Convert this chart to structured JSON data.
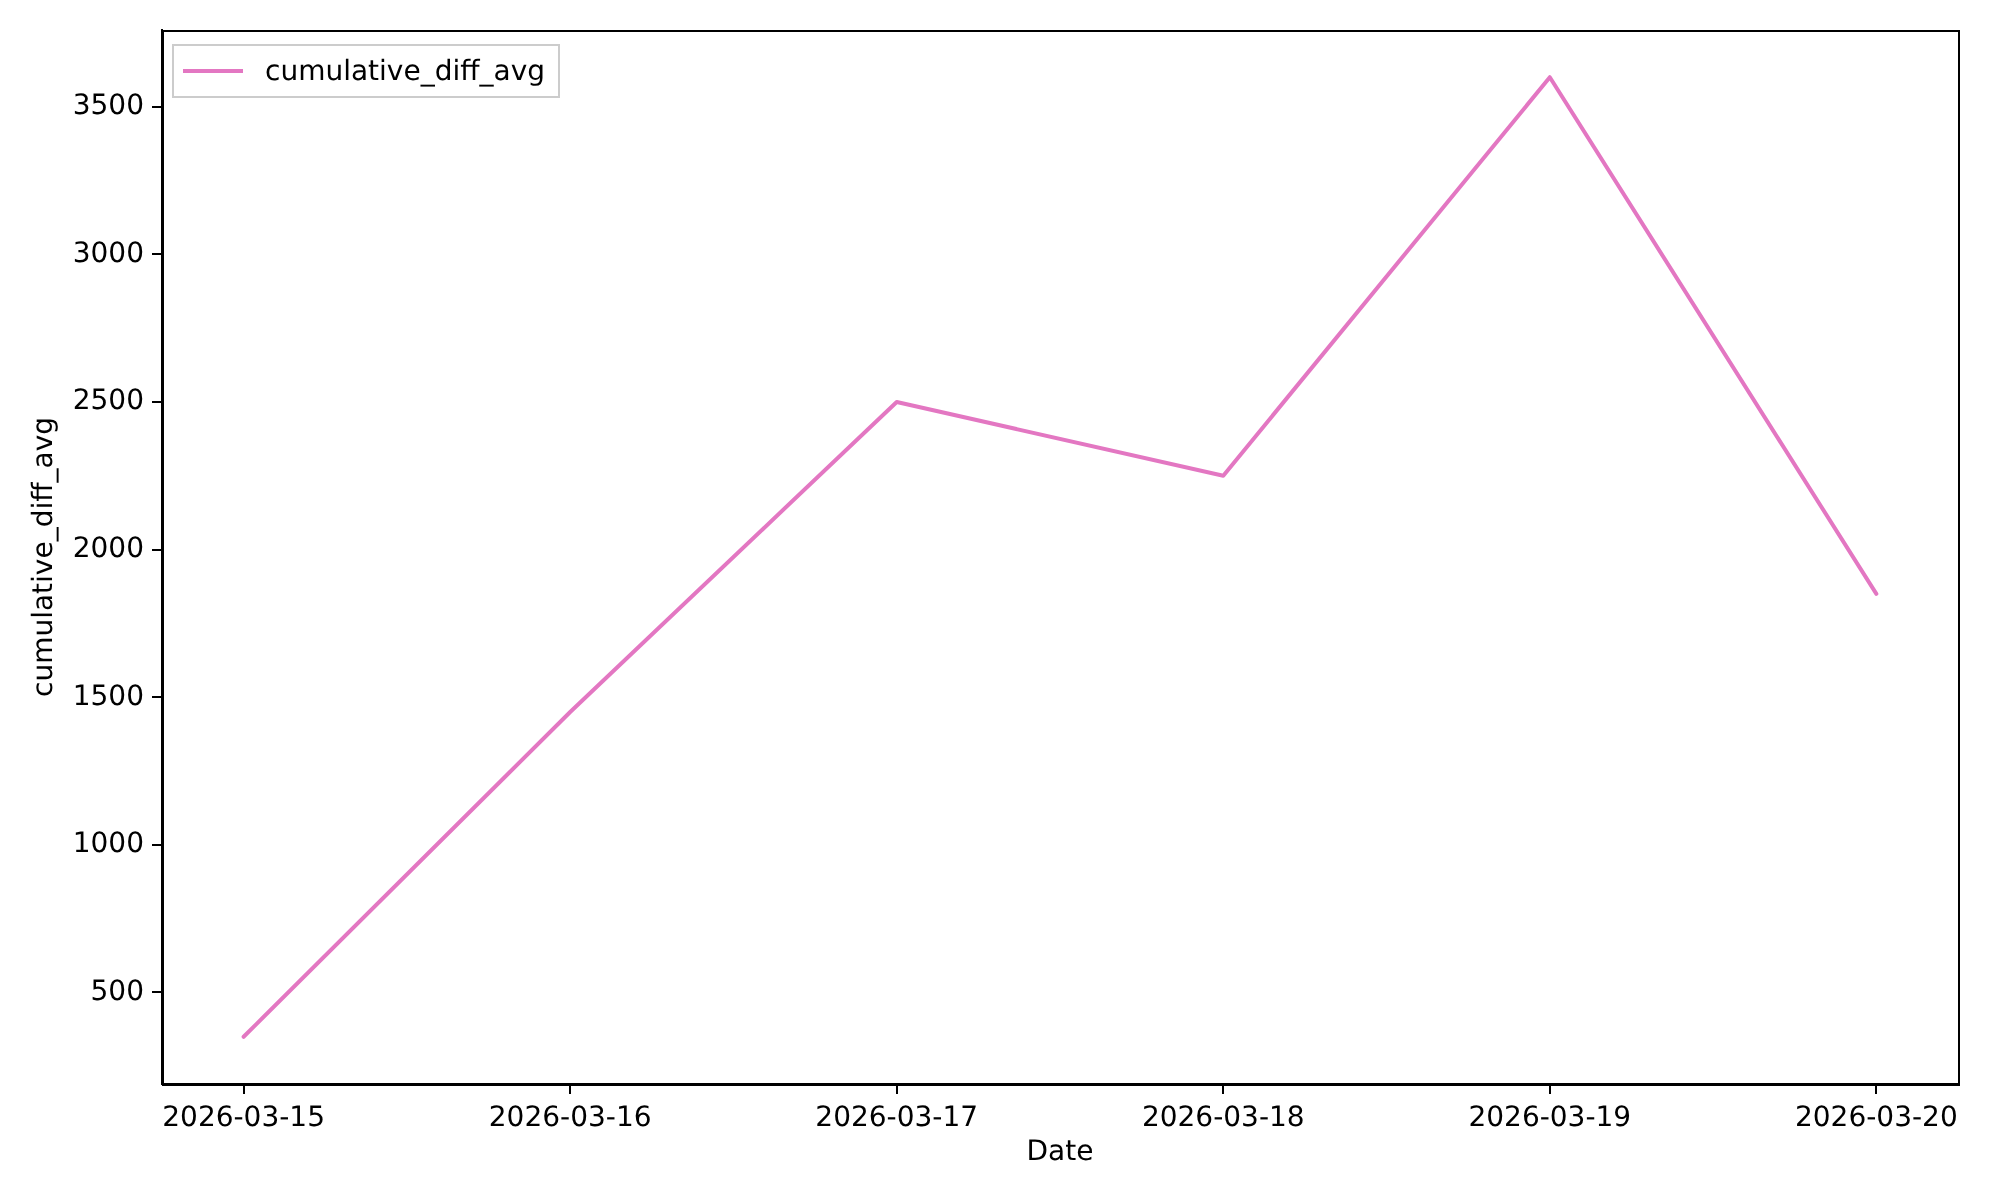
{
  "chart_data": {
    "type": "line",
    "xlabel": "Date",
    "ylabel": "cumulative_diff_avg",
    "x": [
      "2026-03-15",
      "2026-03-16",
      "2026-03-17",
      "2026-03-18",
      "2026-03-19",
      "2026-03-20"
    ],
    "series": [
      {
        "name": "cumulative_diff_avg",
        "color": "#e377c2",
        "values": [
          350,
          1450,
          2500,
          2250,
          3600,
          1850
        ]
      }
    ],
    "xlim": [
      "2026-03-14T18:00",
      "2026-03-20T06:00"
    ],
    "xticks": [
      "2026-03-15",
      "2026-03-16",
      "2026-03-17",
      "2026-03-18",
      "2026-03-19",
      "2026-03-20"
    ],
    "ylim": [
      190,
      3760
    ],
    "yticks": [
      500,
      1000,
      1500,
      2000,
      2500,
      3000,
      3500
    ],
    "grid": false,
    "legend": "top left"
  }
}
